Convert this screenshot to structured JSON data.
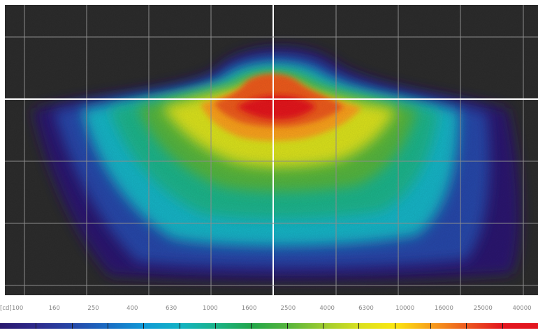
{
  "chart_data": {
    "type": "heatmap",
    "title": "",
    "xlabel": "",
    "ylabel": "",
    "grid": true,
    "unit": "[cd]",
    "legend_placement": "bottom",
    "scale": "log",
    "scale_levels": [
      100,
      160,
      250,
      400,
      630,
      1000,
      1600,
      2500,
      4000,
      6300,
      10000,
      16000,
      25000,
      40000
    ],
    "scale_labels": [
      "100",
      "160",
      "250",
      "400",
      "630",
      "1000",
      "1600",
      "2500",
      "4000",
      "6300",
      "10000",
      "16000",
      "25000",
      "40000"
    ],
    "colors": [
      "#29186e",
      "#2e2a8c",
      "#2647a8",
      "#1a6cc4",
      "#1199d6",
      "#13b3c5",
      "#1bb38a",
      "#21a64a",
      "#55b43c",
      "#9ccb30",
      "#d9e01f",
      "#fbe70f",
      "#f8a01b",
      "#ec5a1f",
      "#e3161f"
    ],
    "background_color": "#2c2c2c",
    "crosshair_color": "#ffffff",
    "grid_color": "#8c8c8c"
  }
}
